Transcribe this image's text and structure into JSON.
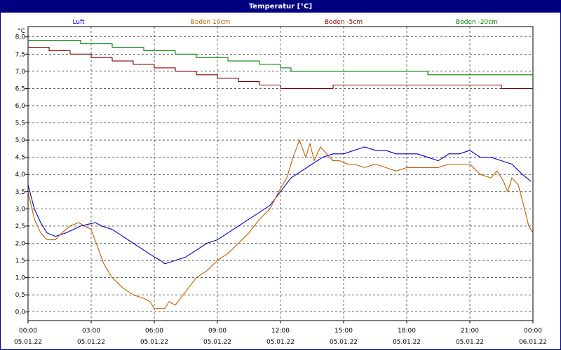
{
  "window": {
    "title": "Temperatur [°C]"
  },
  "chart_data": {
    "type": "line",
    "title": "Temperatur [°C]",
    "ylabel": "°C",
    "ylim": [
      -0.25,
      8.3
    ],
    "xlim": [
      0,
      24
    ],
    "grid": true,
    "legend_position": "top",
    "yticks": [
      "0,0",
      "0,5",
      "1,0",
      "1,5",
      "2,0",
      "2,5",
      "3,0",
      "3,5",
      "4,0",
      "4,5",
      "5,0",
      "5,5",
      "6,0",
      "6,5",
      "7,0",
      "7,5",
      "8,0"
    ],
    "xticks": [
      {
        "time": "00:00",
        "date": "05.01.22"
      },
      {
        "time": "03:00",
        "date": "05.01.22"
      },
      {
        "time": "06:00",
        "date": "05.01.22"
      },
      {
        "time": "09:00",
        "date": "05.01.22"
      },
      {
        "time": "12:00",
        "date": "05.01.22"
      },
      {
        "time": "15:00",
        "date": "05.01.22"
      },
      {
        "time": "18:00",
        "date": "05.01.22"
      },
      {
        "time": "21:00",
        "date": "05.01.22"
      },
      {
        "time": "00:00",
        "date": "06.01.22"
      }
    ],
    "x_unit": "hours since 05.01.22 00:00",
    "series": [
      {
        "name": "Luft",
        "color": "#0000c0",
        "step": false,
        "points": [
          [
            0,
            3.7
          ],
          [
            0.3,
            3.0
          ],
          [
            0.6,
            2.6
          ],
          [
            0.9,
            2.3
          ],
          [
            1.3,
            2.2
          ],
          [
            1.8,
            2.3
          ],
          [
            2.5,
            2.5
          ],
          [
            3.2,
            2.6
          ],
          [
            3.5,
            2.5
          ],
          [
            4,
            2.4
          ],
          [
            4.5,
            2.2
          ],
          [
            5,
            2.0
          ],
          [
            5.5,
            1.8
          ],
          [
            6,
            1.6
          ],
          [
            6.3,
            1.5
          ],
          [
            6.5,
            1.4
          ],
          [
            7,
            1.5
          ],
          [
            7.5,
            1.6
          ],
          [
            8,
            1.8
          ],
          [
            8.5,
            2.0
          ],
          [
            9,
            2.1
          ],
          [
            9.5,
            2.3
          ],
          [
            10,
            2.5
          ],
          [
            10.5,
            2.7
          ],
          [
            11,
            2.9
          ],
          [
            11.5,
            3.1
          ],
          [
            12,
            3.5
          ],
          [
            12.5,
            3.9
          ],
          [
            13,
            4.1
          ],
          [
            13.5,
            4.3
          ],
          [
            14,
            4.5
          ],
          [
            14.5,
            4.6
          ],
          [
            15,
            4.6
          ],
          [
            15.5,
            4.7
          ],
          [
            16,
            4.8
          ],
          [
            16.5,
            4.7
          ],
          [
            17,
            4.7
          ],
          [
            17.5,
            4.6
          ],
          [
            18,
            4.6
          ],
          [
            18.5,
            4.6
          ],
          [
            19,
            4.5
          ],
          [
            19.5,
            4.4
          ],
          [
            20,
            4.6
          ],
          [
            20.5,
            4.6
          ],
          [
            21,
            4.7
          ],
          [
            21.5,
            4.5
          ],
          [
            22,
            4.5
          ],
          [
            22.5,
            4.4
          ],
          [
            23,
            4.3
          ],
          [
            23.5,
            4.0
          ],
          [
            23.9,
            3.8
          ]
        ]
      },
      {
        "name": "Boden 10cm",
        "color": "#c06000",
        "step": false,
        "points": [
          [
            0,
            3.5
          ],
          [
            0.3,
            2.7
          ],
          [
            0.6,
            2.3
          ],
          [
            0.9,
            2.1
          ],
          [
            1.3,
            2.1
          ],
          [
            1.6,
            2.3
          ],
          [
            2,
            2.5
          ],
          [
            2.4,
            2.6
          ],
          [
            2.7,
            2.5
          ],
          [
            3,
            2.4
          ],
          [
            3.3,
            1.9
          ],
          [
            3.6,
            1.4
          ],
          [
            4,
            1.0
          ],
          [
            4.5,
            0.7
          ],
          [
            5,
            0.5
          ],
          [
            5.5,
            0.4
          ],
          [
            5.8,
            0.3
          ],
          [
            6,
            0.1
          ],
          [
            6.5,
            0.1
          ],
          [
            6.7,
            0.3
          ],
          [
            7,
            0.2
          ],
          [
            7.5,
            0.6
          ],
          [
            8,
            1.0
          ],
          [
            8.5,
            1.2
          ],
          [
            9,
            1.5
          ],
          [
            9.5,
            1.7
          ],
          [
            10,
            2.0
          ],
          [
            10.5,
            2.3
          ],
          [
            11,
            2.7
          ],
          [
            11.5,
            3.0
          ],
          [
            12,
            3.6
          ],
          [
            12.3,
            3.9
          ],
          [
            12.6,
            4.5
          ],
          [
            12.9,
            5.0
          ],
          [
            13.2,
            4.5
          ],
          [
            13.4,
            4.9
          ],
          [
            13.6,
            4.4
          ],
          [
            13.9,
            4.8
          ],
          [
            14.2,
            4.6
          ],
          [
            14.5,
            4.4
          ],
          [
            14.8,
            4.4
          ],
          [
            15.2,
            4.3
          ],
          [
            15.5,
            4.3
          ],
          [
            16,
            4.2
          ],
          [
            16.5,
            4.3
          ],
          [
            17,
            4.2
          ],
          [
            17.5,
            4.1
          ],
          [
            18,
            4.2
          ],
          [
            18.5,
            4.2
          ],
          [
            19,
            4.2
          ],
          [
            19.5,
            4.2
          ],
          [
            20,
            4.3
          ],
          [
            20.5,
            4.3
          ],
          [
            21,
            4.3
          ],
          [
            21.5,
            4.0
          ],
          [
            22,
            3.9
          ],
          [
            22.3,
            4.1
          ],
          [
            22.6,
            3.8
          ],
          [
            22.8,
            3.5
          ],
          [
            23,
            3.9
          ],
          [
            23.3,
            3.7
          ],
          [
            23.6,
            3.0
          ],
          [
            23.8,
            2.5
          ],
          [
            24,
            2.3
          ]
        ]
      },
      {
        "name": "Boden -5cm",
        "color": "#800000",
        "step": true,
        "points": [
          [
            0,
            7.7
          ],
          [
            1,
            7.6
          ],
          [
            2,
            7.5
          ],
          [
            3,
            7.4
          ],
          [
            4,
            7.3
          ],
          [
            5,
            7.2
          ],
          [
            6,
            7.1
          ],
          [
            7,
            7.0
          ],
          [
            8,
            6.9
          ],
          [
            9,
            6.8
          ],
          [
            10,
            6.7
          ],
          [
            11,
            6.6
          ],
          [
            12,
            6.5
          ],
          [
            14.5,
            6.6
          ],
          [
            22.5,
            6.5
          ],
          [
            24,
            6.5
          ]
        ]
      },
      {
        "name": "Boden -20cm",
        "color": "#008000",
        "step": true,
        "points": [
          [
            0,
            7.9
          ],
          [
            2.5,
            7.8
          ],
          [
            4,
            7.7
          ],
          [
            5.5,
            7.6
          ],
          [
            7,
            7.5
          ],
          [
            8,
            7.4
          ],
          [
            9.5,
            7.3
          ],
          [
            11,
            7.2
          ],
          [
            12,
            7.1
          ],
          [
            12.5,
            7.0
          ],
          [
            19,
            6.9
          ],
          [
            24,
            6.9
          ]
        ]
      }
    ]
  }
}
